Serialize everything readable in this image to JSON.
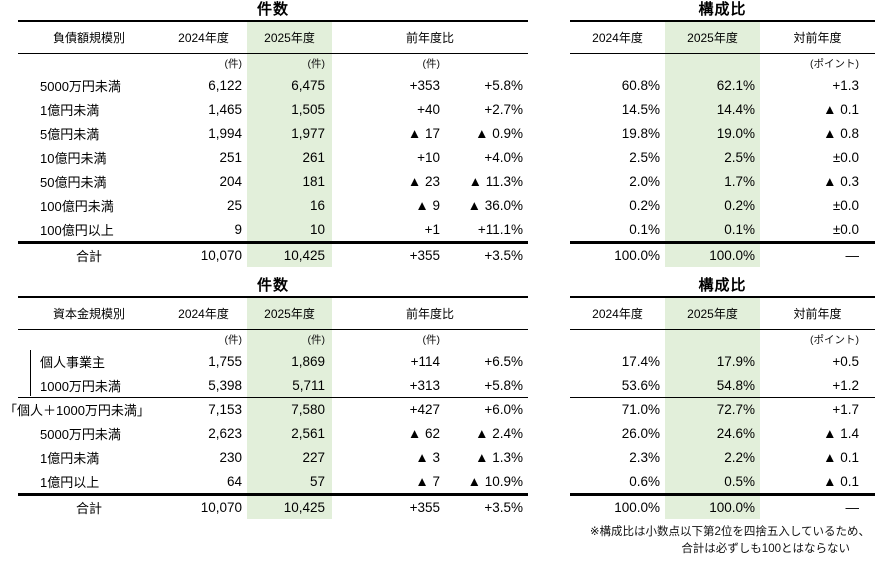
{
  "colors": {
    "highlight_green": "#e2efda",
    "rule": "#000000"
  },
  "section_debt": {
    "count": {
      "title": "件数",
      "headers": {
        "label": "負債額規模別",
        "y2024": "2024年度",
        "y2025": "2025年度",
        "yoy": "前年度比"
      },
      "units": {
        "y2024": "(件)",
        "y2025": "(件)",
        "diff": "(件)"
      },
      "rows": [
        {
          "label": "5000万円未満",
          "y2024": "6,122",
          "y2025": "6,475",
          "diff": "+353",
          "pct": "+5.8%"
        },
        {
          "label": "1億円未満",
          "y2024": "1,465",
          "y2025": "1,505",
          "diff": "+40",
          "pct": "+2.7%"
        },
        {
          "label": "5億円未満",
          "y2024": "1,994",
          "y2025": "1,977",
          "diff": "▲ 17",
          "pct": "▲ 0.9%"
        },
        {
          "label": "10億円未満",
          "y2024": "251",
          "y2025": "261",
          "diff": "+10",
          "pct": "+4.0%"
        },
        {
          "label": "50億円未満",
          "y2024": "204",
          "y2025": "181",
          "diff": "▲ 23",
          "pct": "▲ 11.3%"
        },
        {
          "label": "100億円未満",
          "y2024": "25",
          "y2025": "16",
          "diff": "▲ 9",
          "pct": "▲ 36.0%"
        },
        {
          "label": "100億円以上",
          "y2024": "9",
          "y2025": "10",
          "diff": "+1",
          "pct": "+11.1%"
        }
      ],
      "total": {
        "label": "合計",
        "y2024": "10,070",
        "y2025": "10,425",
        "diff": "+355",
        "pct": "+3.5%"
      }
    },
    "share": {
      "title": "構成比",
      "headers": {
        "y2024": "2024年度",
        "y2025": "2025年度",
        "vs": "対前年度"
      },
      "units": {
        "vs": "(ポイント)"
      },
      "rows": [
        {
          "y2024": "60.8%",
          "y2025": "62.1%",
          "vs": "+1.3"
        },
        {
          "y2024": "14.5%",
          "y2025": "14.4%",
          "vs": "▲ 0.1"
        },
        {
          "y2024": "19.8%",
          "y2025": "19.0%",
          "vs": "▲ 0.8"
        },
        {
          "y2024": "2.5%",
          "y2025": "2.5%",
          "vs": "±0.0"
        },
        {
          "y2024": "2.0%",
          "y2025": "1.7%",
          "vs": "▲ 0.3"
        },
        {
          "y2024": "0.2%",
          "y2025": "0.2%",
          "vs": "±0.0"
        },
        {
          "y2024": "0.1%",
          "y2025": "0.1%",
          "vs": "±0.0"
        }
      ],
      "total": {
        "y2024": "100.0%",
        "y2025": "100.0%",
        "vs": "—"
      }
    }
  },
  "section_capital": {
    "count": {
      "title": "件数",
      "headers": {
        "label": "資本金規模別",
        "y2024": "2024年度",
        "y2025": "2025年度",
        "yoy": "前年度比"
      },
      "units": {
        "y2024": "(件)",
        "y2025": "(件)",
        "diff": "(件)"
      },
      "rows": [
        {
          "label": "個人事業主",
          "y2024": "1,755",
          "y2025": "1,869",
          "diff": "+114",
          "pct": "+6.5%"
        },
        {
          "label": "1000万円未満",
          "y2024": "5,398",
          "y2025": "5,711",
          "diff": "+313",
          "pct": "+5.8%"
        },
        {
          "label": "「個人＋1000万円未満」",
          "y2024": "7,153",
          "y2025": "7,580",
          "diff": "+427",
          "pct": "+6.0%"
        },
        {
          "label": "5000万円未満",
          "y2024": "2,623",
          "y2025": "2,561",
          "diff": "▲ 62",
          "pct": "▲ 2.4%"
        },
        {
          "label": "1億円未満",
          "y2024": "230",
          "y2025": "227",
          "diff": "▲ 3",
          "pct": "▲ 1.3%"
        },
        {
          "label": "1億円以上",
          "y2024": "64",
          "y2025": "57",
          "diff": "▲ 7",
          "pct": "▲ 10.9%"
        }
      ],
      "total": {
        "label": "合計",
        "y2024": "10,070",
        "y2025": "10,425",
        "diff": "+355",
        "pct": "+3.5%"
      }
    },
    "share": {
      "title": "構成比",
      "headers": {
        "y2024": "2024年度",
        "y2025": "2025年度",
        "vs": "対前年度"
      },
      "units": {
        "vs": "(ポイント)"
      },
      "rows": [
        {
          "y2024": "17.4%",
          "y2025": "17.9%",
          "vs": "+0.5"
        },
        {
          "y2024": "53.6%",
          "y2025": "54.8%",
          "vs": "+1.2"
        },
        {
          "y2024": "71.0%",
          "y2025": "72.7%",
          "vs": "+1.7"
        },
        {
          "y2024": "26.0%",
          "y2025": "24.6%",
          "vs": "▲ 1.4"
        },
        {
          "y2024": "2.3%",
          "y2025": "2.2%",
          "vs": "▲ 0.1"
        },
        {
          "y2024": "0.6%",
          "y2025": "0.5%",
          "vs": "▲ 0.1"
        }
      ],
      "total": {
        "y2024": "100.0%",
        "y2025": "100.0%",
        "vs": "—"
      }
    }
  },
  "footnote": {
    "line1": "※構成比は小数点以下第2位を四捨五入しているため、",
    "line2": "合計は必ずしも100とはならない"
  }
}
